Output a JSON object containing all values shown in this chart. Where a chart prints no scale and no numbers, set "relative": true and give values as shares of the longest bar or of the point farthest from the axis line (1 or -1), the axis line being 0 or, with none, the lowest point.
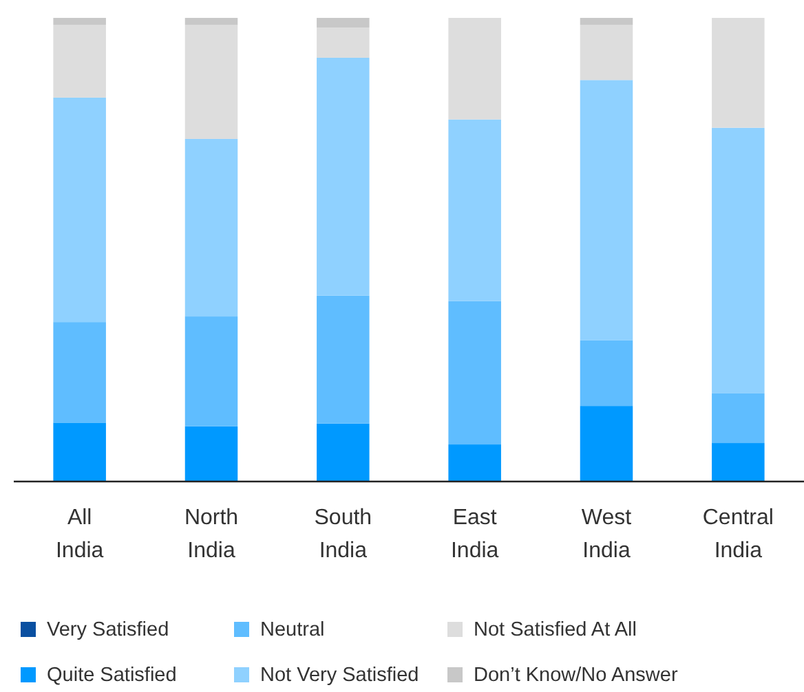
{
  "chart_data": {
    "type": "bar",
    "stacked": true,
    "relative": true,
    "legend": "bottom",
    "categories": [
      "All India",
      "North India",
      "South India",
      "East India",
      "West India",
      "Central India"
    ],
    "series": [
      {
        "name": "Very Satisfied",
        "color": "#0a50a1",
        "values": [
          null,
          null,
          null,
          null,
          null,
          null
        ]
      },
      {
        "name": "Quite Satisfied",
        "color": "#0099ff",
        "values": [
          0.127,
          0.119,
          0.125,
          0.08,
          0.163,
          0.083
        ]
      },
      {
        "name": "Neutral",
        "color": "#5fbdff",
        "values": [
          0.217,
          0.237,
          0.276,
          0.309,
          0.142,
          0.107
        ]
      },
      {
        "name": "Not Very Satisfied",
        "color": "#8fd1ff",
        "values": [
          0.484,
          0.383,
          0.513,
          0.392,
          0.561,
          0.573
        ]
      },
      {
        "name": "Not Satisfied At All",
        "color": "#dddddd",
        "values": [
          0.157,
          0.246,
          0.065,
          0.219,
          0.119,
          0.237
        ]
      },
      {
        "name": "Don’t Know/No Answer",
        "color": "#c8c8c8",
        "values": [
          0.015,
          0.015,
          0.021,
          0,
          0.015,
          0
        ]
      }
    ]
  }
}
